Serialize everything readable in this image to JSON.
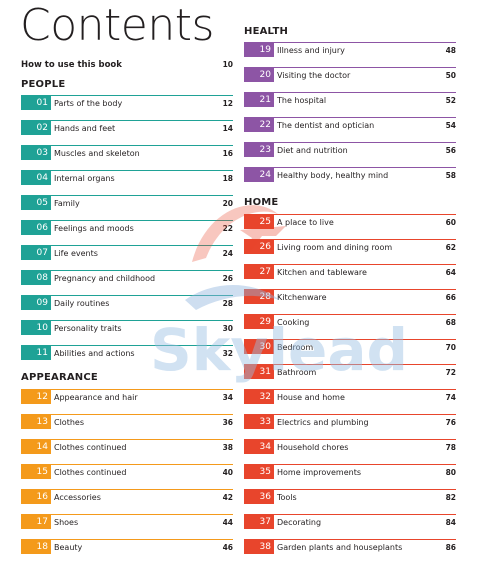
{
  "title": "Contents",
  "howto": {
    "label": "How to use this book",
    "page": "10"
  },
  "people": {
    "heading": "PEOPLE",
    "items": [
      {
        "num": "01",
        "label": "Parts of the body",
        "page": "12"
      },
      {
        "num": "02",
        "label": "Hands and feet",
        "page": "14"
      },
      {
        "num": "03",
        "label": "Muscles and skeleton",
        "page": "16"
      },
      {
        "num": "04",
        "label": "Internal organs",
        "page": "18"
      },
      {
        "num": "05",
        "label": "Family",
        "page": "20"
      },
      {
        "num": "06",
        "label": "Feelings and moods",
        "page": "22"
      },
      {
        "num": "07",
        "label": "Life events",
        "page": "24"
      },
      {
        "num": "08",
        "label": "Pregnancy and childhood",
        "page": "26"
      },
      {
        "num": "09",
        "label": "Daily routines",
        "page": "28"
      },
      {
        "num": "10",
        "label": "Personality traits",
        "page": "30"
      },
      {
        "num": "11",
        "label": "Abilities and actions",
        "page": "32"
      }
    ]
  },
  "appearance": {
    "heading": "APPEARANCE",
    "items": [
      {
        "num": "12",
        "label": "Appearance and hair",
        "page": "34"
      },
      {
        "num": "13",
        "label": "Clothes",
        "page": "36"
      },
      {
        "num": "14",
        "label": "Clothes continued",
        "page": "38"
      },
      {
        "num": "15",
        "label": "Clothes continued",
        "page": "40"
      },
      {
        "num": "16",
        "label": "Accessories",
        "page": "42"
      },
      {
        "num": "17",
        "label": "Shoes",
        "page": "44"
      },
      {
        "num": "18",
        "label": "Beauty",
        "page": "46"
      }
    ]
  },
  "health": {
    "heading": "HEALTH",
    "items": [
      {
        "num": "19",
        "label": "Illness and injury",
        "page": "48"
      },
      {
        "num": "20",
        "label": "Visiting the doctor",
        "page": "50"
      },
      {
        "num": "21",
        "label": "The hospital",
        "page": "52"
      },
      {
        "num": "22",
        "label": "The dentist and optician",
        "page": "54"
      },
      {
        "num": "23",
        "label": "Diet and nutrition",
        "page": "56"
      },
      {
        "num": "24",
        "label": "Healthy body, healthy mind",
        "page": "58"
      }
    ]
  },
  "home": {
    "heading": "HOME",
    "items": [
      {
        "num": "25",
        "label": "A place to live",
        "page": "60"
      },
      {
        "num": "26",
        "label": "Living room and dining room",
        "page": "62"
      },
      {
        "num": "27",
        "label": "Kitchen and tableware",
        "page": "64"
      },
      {
        "num": "28",
        "label": "Kitchenware",
        "page": "66"
      },
      {
        "num": "29",
        "label": "Cooking",
        "page": "68"
      },
      {
        "num": "30",
        "label": "Bedroom",
        "page": "70"
      },
      {
        "num": "31",
        "label": "Bathroom",
        "page": "72"
      },
      {
        "num": "32",
        "label": "House and home",
        "page": "74"
      },
      {
        "num": "33",
        "label": "Electrics and plumbing",
        "page": "76"
      },
      {
        "num": "34",
        "label": "Household chores",
        "page": "78"
      },
      {
        "num": "35",
        "label": "Home improvements",
        "page": "80"
      },
      {
        "num": "36",
        "label": "Tools",
        "page": "82"
      },
      {
        "num": "37",
        "label": "Decorating",
        "page": "84"
      },
      {
        "num": "38",
        "label": "Garden plants and houseplants",
        "page": "86"
      }
    ]
  },
  "watermark": {
    "text": "Skylead",
    "icon": "plane-swoosh-icon"
  },
  "colors": {
    "people": "#1fa296",
    "appearance": "#f49a1b",
    "health": "#8d55a5",
    "home": "#e8452c"
  }
}
